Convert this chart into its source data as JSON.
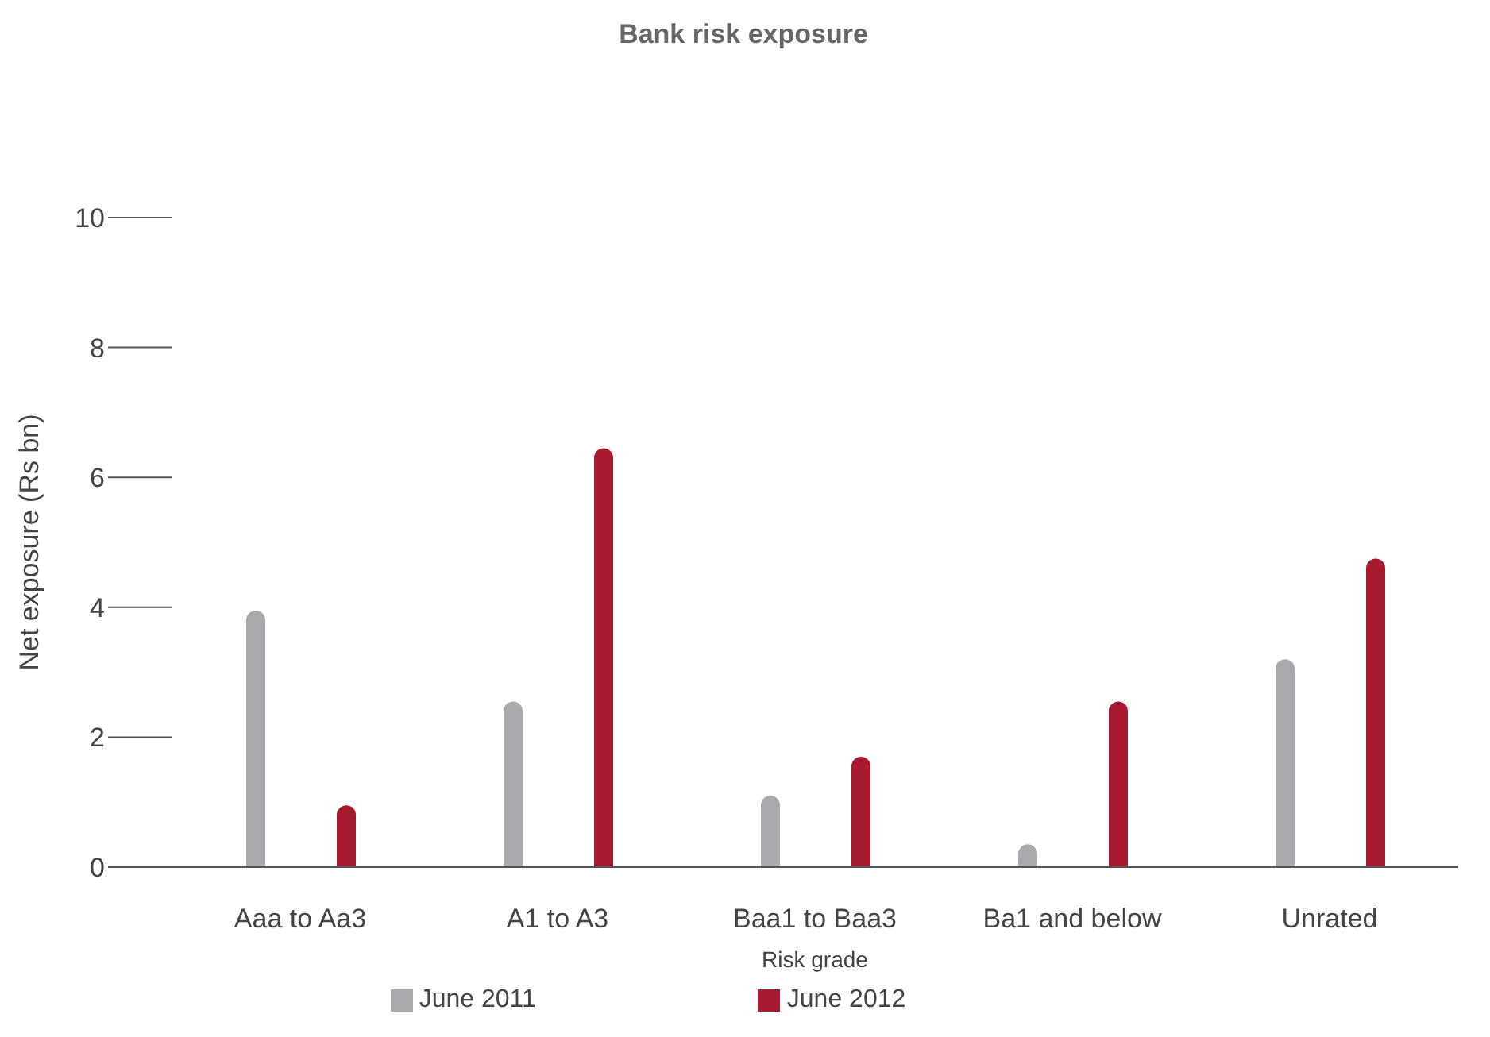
{
  "chart_data": {
    "type": "bar",
    "title": "Bank risk exposure",
    "xlabel": "Risk grade",
    "ylabel": "Net exposure (Rs bn)",
    "categories": [
      "Aaa to Aa3",
      "A1 to A3",
      "Baa1 to Baa3",
      "Ba1 and below",
      "Unrated"
    ],
    "series": [
      {
        "name": "June 2011",
        "color": "#a7a9ac",
        "values": [
          3.95,
          2.55,
          1.1,
          0.35,
          3.2
        ]
      },
      {
        "name": "June 2012",
        "color": "#a6192e",
        "values": [
          0.95,
          6.45,
          1.7,
          2.55,
          4.75
        ]
      }
    ],
    "ylim": [
      0,
      10
    ],
    "yticks": [
      0,
      2,
      4,
      6,
      8,
      10
    ],
    "grid": false,
    "legend": "bottom"
  }
}
